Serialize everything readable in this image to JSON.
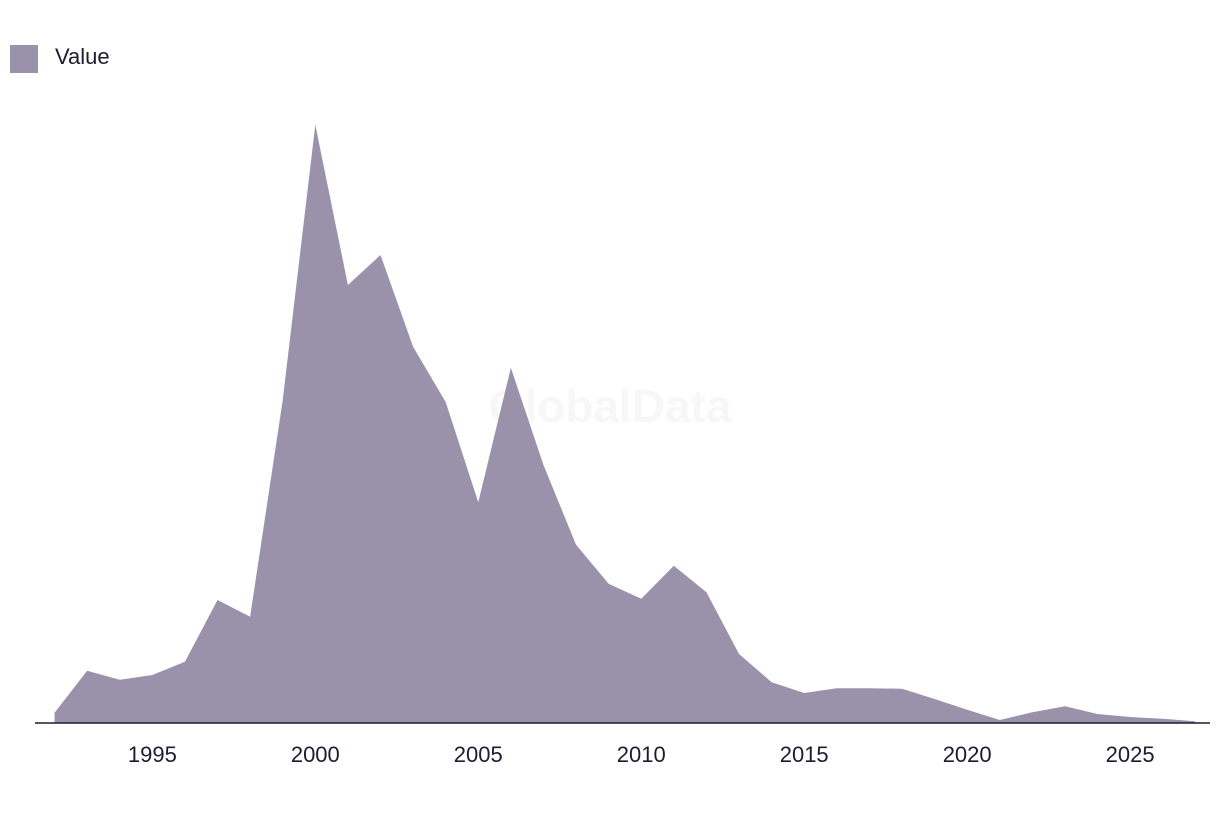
{
  "chart_data": {
    "type": "area",
    "watermark": "GlobalData",
    "x": [
      1992,
      1993,
      1994,
      1995,
      1996,
      1997,
      1998,
      1999,
      2000,
      2001,
      2002,
      2003,
      2004,
      2005,
      2006,
      2007,
      2008,
      2009,
      2010,
      2011,
      2012,
      2013,
      2014,
      2015,
      2016,
      2017,
      2018,
      2019,
      2020,
      2021,
      2022,
      2023,
      2024,
      2025,
      2026,
      2027
    ],
    "series": [
      {
        "name": "Value",
        "color": "#9a92ab",
        "values": [
          1.7,
          8.7,
          7.2,
          8.0,
          10.2,
          20.5,
          17.7,
          53.8,
          99.7,
          73,
          78,
          62.7,
          53.5,
          36.8,
          59.2,
          43,
          29.7,
          23.2,
          20.7,
          26.2,
          21.8,
          11.5,
          6.8,
          5,
          5.8,
          5.8,
          5.7,
          4,
          2.2,
          0.5,
          1.8,
          2.8,
          1.5,
          1,
          0.7,
          0.3
        ]
      }
    ],
    "xlim": [
      1991.4,
      2027.45
    ],
    "xticks": [
      1995,
      2000,
      2005,
      2010,
      2015,
      2020,
      2025
    ],
    "ylim": [
      0,
      100
    ],
    "legend": "top-left"
  }
}
